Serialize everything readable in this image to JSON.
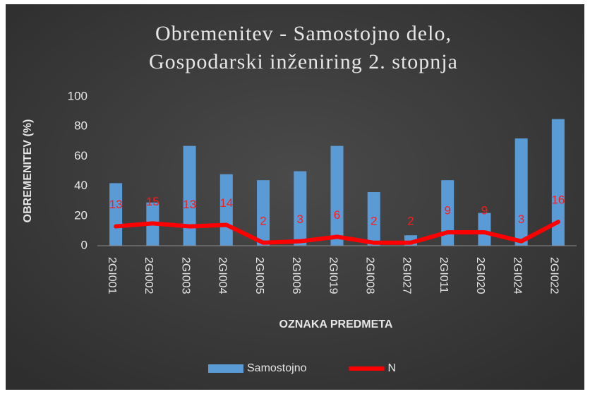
{
  "chart_data": {
    "type": "bar",
    "title": "Obremenitev - Samostojno delo,",
    "subtitle": "Gospodarski inženiring 2. stopnja",
    "x_label": "OZNAKA PREDMETA",
    "y_label": "OBREMENITEV (%)",
    "categories": [
      "2GI001",
      "2GI002",
      "2GI003",
      "2GI004",
      "2GI005",
      "2GI006",
      "2GI019",
      "2GI008",
      "2GI027",
      "2GI011",
      "2GI020",
      "2GI024",
      "2GI022"
    ],
    "series": [
      {
        "name": "Samostojno",
        "type": "bar",
        "color": "#5b9bd5",
        "values": [
          42,
          29,
          67,
          48,
          44,
          50,
          67,
          36,
          7,
          44,
          22,
          72,
          85
        ]
      },
      {
        "name": "N",
        "type": "line",
        "color": "#ff0000",
        "values": [
          13,
          15,
          13,
          14,
          2,
          3,
          6,
          2,
          2,
          9,
          9,
          3,
          16
        ],
        "data_labels": true
      }
    ],
    "ylim": [
      0,
      100
    ],
    "yticks": [
      0,
      20,
      40,
      60,
      80,
      100
    ],
    "grid": false,
    "legend": "bottom"
  }
}
